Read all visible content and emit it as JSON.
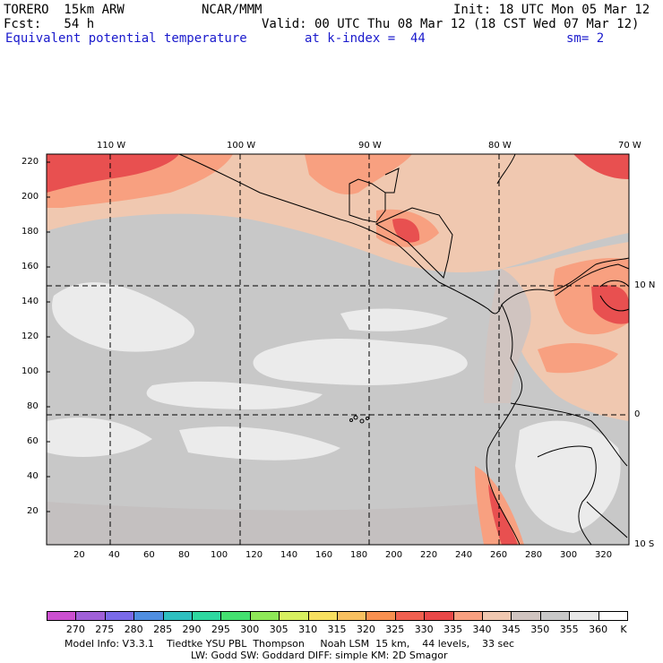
{
  "header": {
    "model": "TORERO  15km ARW",
    "org": "NCAR/MMM",
    "init": "Init: 18 UTC Mon 05 Mar 12",
    "fcst": "Fcst:   54 h",
    "valid": "Valid: 00 UTC Thu 08 Mar 12 (18 CST Wed 07 Mar 12)",
    "field": "Equivalent potential temperature",
    "level": "at k-index =  44",
    "smooth": "sm= 2"
  },
  "axes": {
    "top_lon": [
      "110 W",
      "100 W",
      "90 W",
      "80 W",
      "70 W"
    ],
    "right_lat": [
      "10 N",
      "0",
      "10 S"
    ],
    "left_y": [
      "220",
      "200",
      "180",
      "160",
      "140",
      "120",
      "100",
      "80",
      "60",
      "40",
      "20"
    ],
    "bottom_x": [
      "20",
      "40",
      "60",
      "80",
      "100",
      "120",
      "140",
      "160",
      "180",
      "200",
      "220",
      "240",
      "260",
      "280",
      "300",
      "320"
    ]
  },
  "colorbar": {
    "labels": [
      "270",
      "275",
      "280",
      "285",
      "290",
      "295",
      "300",
      "305",
      "310",
      "315",
      "320",
      "325",
      "330",
      "335",
      "340",
      "345",
      "350",
      "355",
      "360"
    ],
    "unit": "K",
    "colors": [
      "#cc4fd0",
      "#a060d8",
      "#7a6ae8",
      "#4f8ee0",
      "#2ec0c0",
      "#2ed8a0",
      "#44e070",
      "#8ee858",
      "#d8f060",
      "#f8e060",
      "#f8c060",
      "#f89050",
      "#f06050",
      "#e84848",
      "#f8a080",
      "#f0c8b0",
      "#d0c4c0",
      "#c8c8c8",
      "#e8e8e8",
      "#ffffff"
    ]
  },
  "footer": {
    "line1": "Model Info: V3.3.1    Tiedtke YSU PBL  Thompson     Noah LSM  15 km,    44 levels,    33 sec",
    "line2": "LW: Godd SW: Goddard DIFF: simple KM: 2D Smagor"
  },
  "map_colors": {
    "base": "#c8c8c8",
    "light": "#ebebeb",
    "peach": "#f0c8b0",
    "salmon": "#f8a080",
    "red": "#e85050",
    "taupe": "#d0c4c0"
  }
}
